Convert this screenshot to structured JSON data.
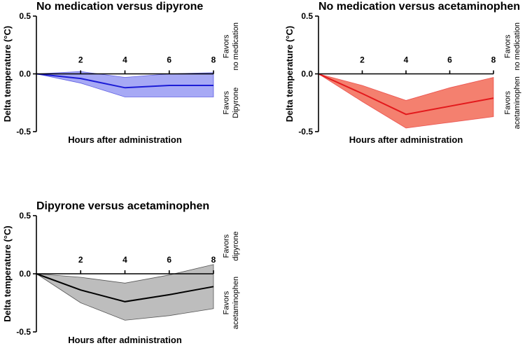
{
  "chart_data": [
    {
      "type": "area",
      "title": "No medication versus dipyrone",
      "xlabel": "Hours after administration",
      "ylabel": "Delta temperature (°C)",
      "x": [
        0,
        2,
        4,
        6,
        8
      ],
      "xticks": [
        "2",
        "4",
        "6",
        "8"
      ],
      "yticks": [
        "0.5",
        "0.0",
        "-0.5"
      ],
      "ylim": [
        -0.5,
        0.5
      ],
      "xlim": [
        0,
        8
      ],
      "series": [
        {
          "name": "mean",
          "values": [
            0.0,
            -0.04,
            -0.12,
            -0.1,
            -0.1
          ]
        },
        {
          "name": "upper",
          "values": [
            0.0,
            0.02,
            -0.03,
            0.0,
            0.01
          ]
        },
        {
          "name": "lower",
          "values": [
            0.0,
            -0.08,
            -0.2,
            -0.2,
            -0.2
          ]
        }
      ],
      "line_color": "#1c1cd6",
      "fill_color": "#a7a9f5",
      "annotation_top": [
        "Favors",
        "no medication"
      ],
      "annotation_bottom": [
        "Favors",
        "Dipyrone"
      ]
    },
    {
      "type": "area",
      "title": "No medication versus acetaminophen",
      "xlabel": "Hours after administration",
      "ylabel": "Delta temperature (°C)",
      "x": [
        0,
        2,
        4,
        6,
        8
      ],
      "xticks": [
        "2",
        "4",
        "6",
        "8"
      ],
      "yticks": [
        "0.5",
        "0.0",
        "-0.5"
      ],
      "ylim": [
        -0.5,
        0.5
      ],
      "xlim": [
        0,
        8
      ],
      "series": [
        {
          "name": "mean",
          "values": [
            0.0,
            -0.17,
            -0.35,
            -0.28,
            -0.21
          ]
        },
        {
          "name": "upper",
          "values": [
            0.0,
            -0.1,
            -0.23,
            -0.12,
            -0.03
          ]
        },
        {
          "name": "lower",
          "values": [
            0.0,
            -0.24,
            -0.47,
            -0.42,
            -0.37
          ]
        }
      ],
      "line_color": "#e3191c",
      "fill_color": "#f4806f",
      "annotation_top": [
        "Favors",
        "no medication"
      ],
      "annotation_bottom": [
        "Favors",
        "acetaminophen"
      ]
    },
    {
      "type": "area",
      "title": "Dipyrone versus acetaminophen",
      "xlabel": "Hours after administration",
      "ylabel": "Delta temperature (°C)",
      "x": [
        0,
        2,
        4,
        6,
        8
      ],
      "xticks": [
        "2",
        "4",
        "6",
        "8"
      ],
      "yticks": [
        "0.5",
        "0.0",
        "-0.5"
      ],
      "ylim": [
        -0.5,
        0.5
      ],
      "xlim": [
        0,
        8
      ],
      "series": [
        {
          "name": "mean",
          "values": [
            0.0,
            -0.14,
            -0.24,
            -0.18,
            -0.11
          ]
        },
        {
          "name": "upper",
          "values": [
            0.0,
            -0.03,
            -0.08,
            -0.01,
            0.08
          ]
        },
        {
          "name": "lower",
          "values": [
            0.0,
            -0.25,
            -0.4,
            -0.36,
            -0.3
          ]
        }
      ],
      "line_color": "#000000",
      "fill_color": "#bdbdbd",
      "annotation_top": [
        "Favors",
        "dipyrone"
      ],
      "annotation_bottom": [
        "Favors",
        "acetaminophen"
      ]
    }
  ]
}
